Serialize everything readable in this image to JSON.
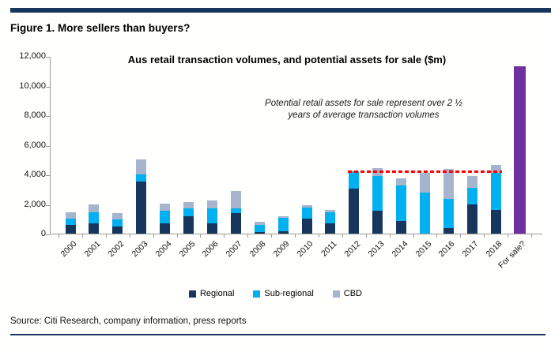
{
  "figure": {
    "title": "Figure 1. More sellers than buyers?"
  },
  "source": "Source: Citi Research, company information, press reports",
  "colors": {
    "rule": "#17365D",
    "regional": "#17365D",
    "sub_regional": "#00B0F0",
    "cbd": "#A6B4CE",
    "for_sale": "#7030A0",
    "dashed_line": "#FF0000",
    "axis": "#9a9a9a"
  },
  "chart_data": {
    "type": "bar",
    "stacked": true,
    "title": "Aus retail transaction volumes, and potential assets for sale ($m)",
    "annotation": [
      "Potential retail assets for sale represent over 2 ½",
      "years of average transaction volumes"
    ],
    "categories": [
      "2000",
      "2001",
      "2002",
      "2003",
      "2004",
      "2005",
      "2006",
      "2007",
      "2008",
      "2009",
      "2010",
      "2011",
      "2012",
      "2013",
      "2014",
      "2015",
      "2016",
      "2017",
      "2018",
      "For sale?"
    ],
    "series": [
      {
        "name": "Regional",
        "color": "#17365D",
        "values": [
          600,
          700,
          500,
          3500,
          700,
          1200,
          700,
          1400,
          100,
          150,
          1000,
          700,
          3050,
          1550,
          850,
          0,
          400,
          2000,
          1600,
          0
        ]
      },
      {
        "name": "Sub-regional",
        "color": "#00B0F0",
        "values": [
          400,
          750,
          450,
          500,
          850,
          500,
          1000,
          300,
          500,
          900,
          750,
          750,
          1150,
          2350,
          2400,
          2800,
          1950,
          1100,
          2500,
          0
        ]
      },
      {
        "name": "CBD",
        "color": "#A6B4CE",
        "values": [
          450,
          500,
          450,
          1000,
          500,
          450,
          550,
          1200,
          200,
          100,
          150,
          150,
          0,
          550,
          500,
          1300,
          2050,
          800,
          550,
          0
        ]
      }
    ],
    "highlight_bar": {
      "category": "For sale?",
      "value": 11300,
      "color": "#7030A0"
    },
    "dashed_line": {
      "value": 4200,
      "from_category": "2012",
      "to_category": "2018",
      "color": "#FF0000"
    },
    "ylim": [
      0,
      12000
    ],
    "yticks": [
      0,
      2000,
      4000,
      6000,
      8000,
      10000,
      12000
    ],
    "xlabel": "",
    "ylabel": "",
    "grid": false,
    "legend_position": "bottom"
  }
}
